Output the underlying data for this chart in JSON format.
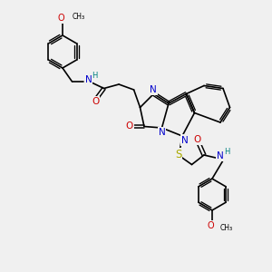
{
  "background_color": "#f0f0f0",
  "figure_size": [
    3.0,
    3.0
  ],
  "dpi": 100,
  "bond_color": "#000000",
  "N_color": "#0000cc",
  "O_color": "#cc0000",
  "S_color": "#aaaa00",
  "H_color": "#008080",
  "bond_width": 1.2,
  "xlim": [
    0,
    10
  ],
  "ylim": [
    0,
    10
  ]
}
